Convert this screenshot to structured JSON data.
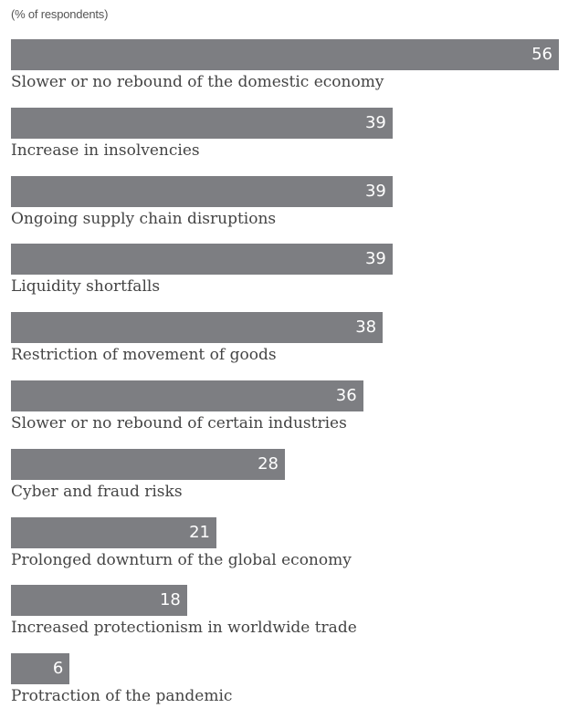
{
  "chart_data": {
    "type": "bar",
    "orientation": "horizontal",
    "subtitle": "(% of respondents)",
    "categories": [
      "Slower or no rebound of the domestic economy",
      "Increase in insolvencies",
      "Ongoing supply chain disruptions",
      "Liquidity shortfalls",
      "Restriction of movement of goods",
      "Slower or no rebound of certain industries",
      "Cyber and fraud risks",
      "Prolonged downturn of the global economy",
      "Increased protectionism in worldwide trade",
      "Protraction of the pandemic"
    ],
    "values": [
      56,
      39,
      39,
      39,
      38,
      36,
      28,
      21,
      18,
      6
    ],
    "xlim": [
      0,
      56
    ],
    "grid": false,
    "legend": "none",
    "bar_color": "#7d7e82",
    "value_label_color": "#ffffff",
    "label_color": "#444444"
  }
}
